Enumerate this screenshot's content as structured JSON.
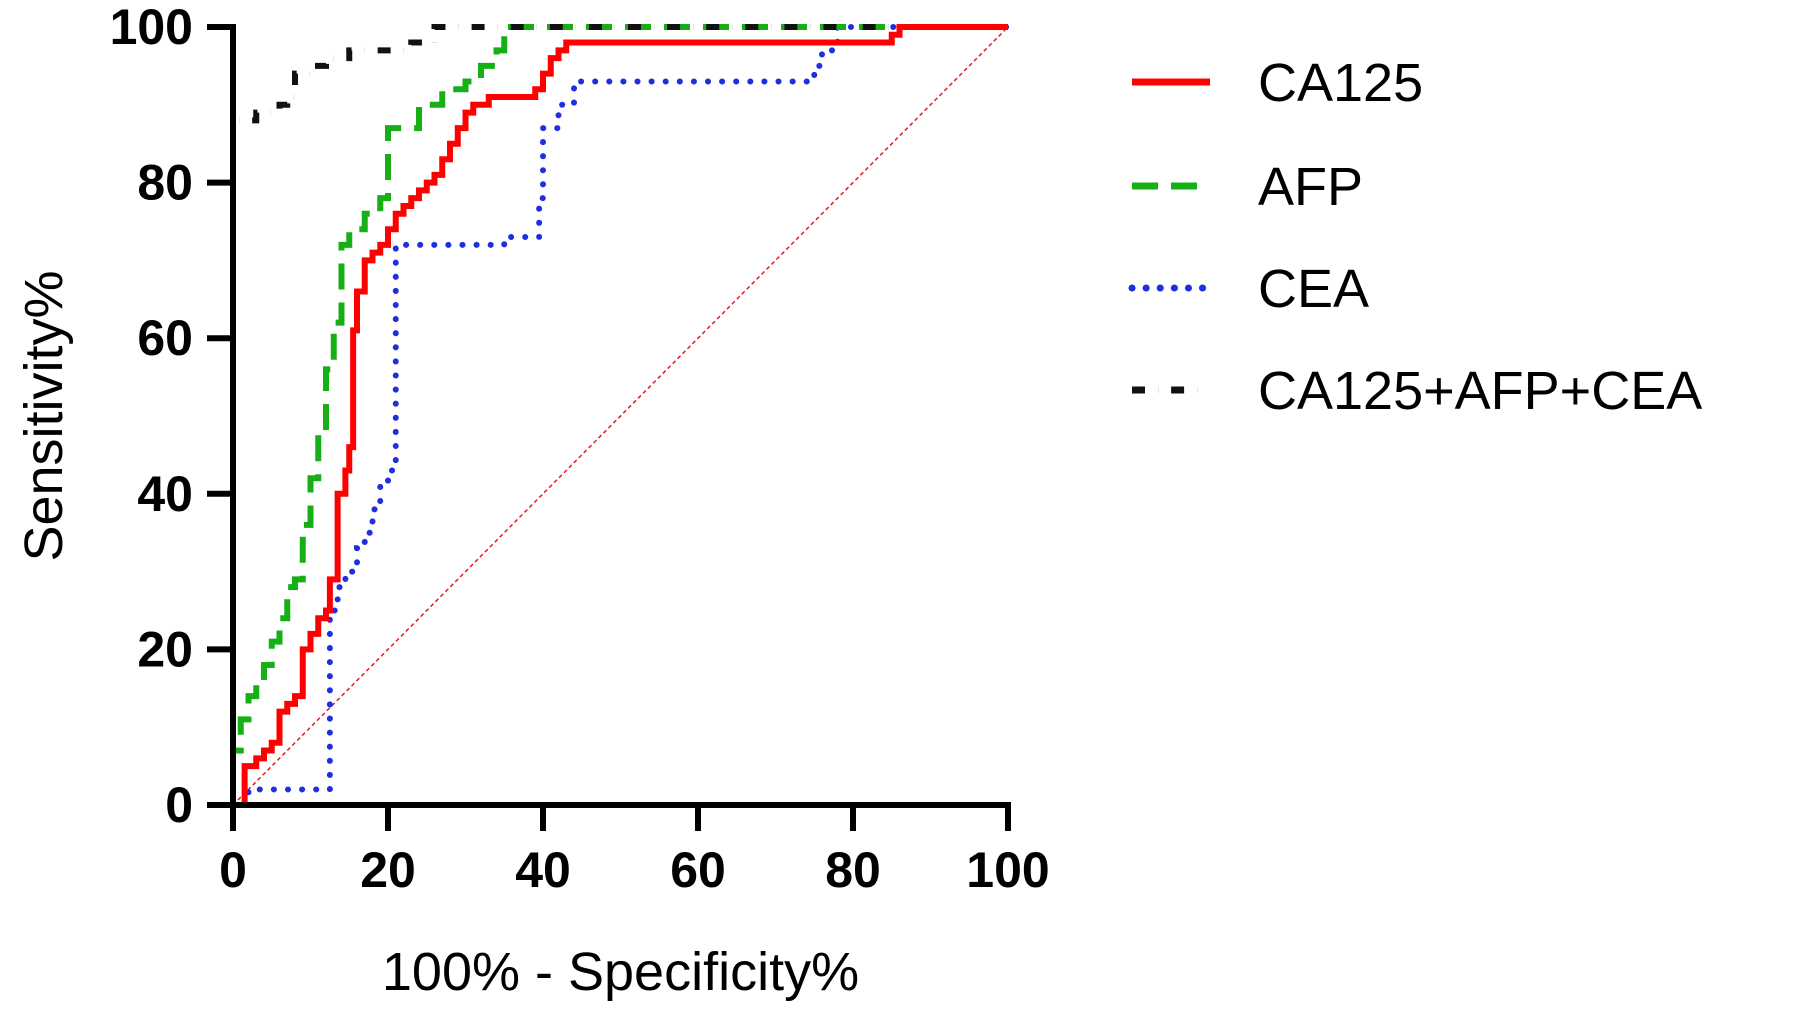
{
  "chart_data": {
    "type": "line",
    "title": "",
    "xlabel": "100% - Specificity%",
    "ylabel": "Sensitivity%",
    "xlim": [
      0,
      100
    ],
    "ylim": [
      0,
      100
    ],
    "xticks": [
      "0",
      "20",
      "40",
      "60",
      "80",
      "100"
    ],
    "yticks": [
      "0",
      "20",
      "40",
      "60",
      "80",
      "100"
    ],
    "grid": false,
    "legend_position": "right",
    "reference_line": {
      "name": "Reference",
      "color": "#e41a1c",
      "style": "dotted-thin",
      "x": [
        0,
        100
      ],
      "y": [
        0,
        100
      ]
    },
    "series": [
      {
        "name": "CA125",
        "color": "#ff0000",
        "style": "solid",
        "x": [
          0,
          1.5,
          1.5,
          3,
          3,
          4,
          4,
          5,
          5,
          6,
          6,
          7,
          7,
          8,
          8,
          9,
          9,
          10,
          10,
          11,
          11,
          12,
          12,
          12.5,
          12.5,
          13.5,
          13.5,
          14.5,
          14.5,
          15,
          15,
          15.5,
          15.5,
          16,
          16,
          17,
          17,
          18,
          18,
          19,
          19,
          20,
          20,
          21,
          21,
          22,
          22,
          23,
          23,
          24,
          24,
          25,
          25,
          26,
          26,
          27,
          27,
          28,
          28,
          29,
          29,
          30,
          30,
          31,
          31,
          32,
          32,
          33,
          33,
          39,
          39,
          40,
          40,
          41,
          41,
          42,
          42,
          43,
          43,
          44,
          44,
          85,
          85,
          86,
          86,
          100
        ],
        "y": [
          0,
          0,
          5,
          5,
          6,
          6,
          7,
          7,
          8,
          8,
          12,
          12,
          13,
          13,
          14,
          14,
          20,
          20,
          22,
          22,
          24,
          24,
          25,
          25,
          29,
          29,
          40,
          40,
          43,
          43,
          46,
          46,
          61,
          61,
          66,
          66,
          70,
          70,
          71,
          71,
          72,
          72,
          74,
          74,
          76,
          76,
          77,
          77,
          78,
          78,
          79,
          79,
          80,
          80,
          81,
          81,
          83,
          83,
          85,
          85,
          87,
          87,
          89,
          89,
          90,
          90,
          90,
          90,
          91,
          91,
          92,
          92,
          94,
          94,
          96,
          96,
          97,
          97,
          98,
          98,
          98,
          98,
          99,
          99,
          100,
          100
        ]
      },
      {
        "name": "AFP",
        "color": "#16b016",
        "style": "dashed",
        "x": [
          0,
          0,
          1,
          1,
          2,
          2,
          3,
          3,
          4,
          4,
          5,
          5,
          6,
          6,
          7,
          7,
          8,
          8,
          9,
          9,
          10,
          10,
          11,
          11,
          12,
          12,
          13,
          13,
          14,
          14,
          15,
          15,
          17,
          17,
          19,
          19,
          20,
          20,
          24,
          24,
          27,
          27,
          30,
          30,
          32,
          32,
          34,
          34,
          35,
          35,
          100
        ],
        "y": [
          0,
          7,
          7,
          11,
          11,
          14,
          14,
          15,
          15,
          18,
          18,
          21,
          21,
          24,
          24,
          28,
          28,
          29,
          29,
          36,
          36,
          42,
          42,
          48,
          48,
          56,
          56,
          62,
          62,
          72,
          72,
          74,
          74,
          76,
          76,
          78,
          78,
          87,
          87,
          90,
          90,
          92,
          92,
          93,
          93,
          95,
          95,
          97,
          97,
          100,
          100
        ]
      },
      {
        "name": "CEA",
        "color": "#1f2fe0",
        "style": "dotted",
        "x": [
          0,
          2,
          2,
          12.5,
          12.5,
          13.5,
          13.5,
          14.5,
          14.5,
          16,
          16,
          17,
          17,
          18,
          18,
          19,
          19,
          20,
          20,
          21,
          21,
          35,
          35,
          39.5,
          39.5,
          40,
          40,
          42,
          42,
          44,
          44,
          75,
          75,
          76,
          76,
          78,
          78,
          100
        ],
        "y": [
          0,
          0,
          2,
          2,
          25,
          25,
          28,
          28,
          30,
          30,
          33,
          33,
          35,
          35,
          38,
          38,
          41,
          41,
          43,
          43,
          72,
          72,
          73,
          73,
          78,
          78,
          87,
          87,
          90,
          90,
          93,
          93,
          95,
          95,
          97,
          97,
          100,
          100
        ]
      },
      {
        "name": "CA125+AFP+CEA",
        "color": "#111111",
        "style": "dashdot",
        "x": [
          0,
          0,
          3,
          3,
          6,
          6,
          7,
          7,
          8,
          8,
          10,
          10,
          12,
          12,
          15,
          15,
          17,
          17,
          20,
          20,
          23,
          23,
          25,
          25,
          26,
          26,
          100
        ],
        "y": [
          0,
          88,
          88,
          89,
          89,
          90,
          90,
          91,
          91,
          94,
          94,
          95,
          95,
          96,
          96,
          97,
          97,
          97,
          97,
          97,
          97,
          98,
          98,
          98,
          98,
          100,
          100
        ]
      }
    ]
  }
}
